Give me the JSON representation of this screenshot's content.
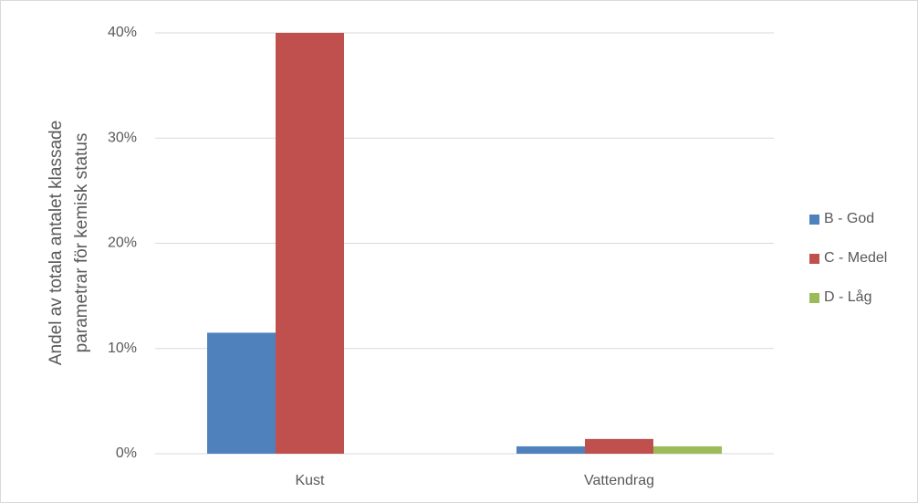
{
  "chart_data": {
    "type": "bar",
    "ylabel": [
      "Andel av totala antalet klassade",
      "parametrar för kemisk status"
    ],
    "categories": [
      "Kust",
      "Vattendrag"
    ],
    "series": [
      {
        "name": "B - God",
        "color": "#4f81bd",
        "values": [
          11.5,
          0.7
        ]
      },
      {
        "name": "C - Medel",
        "color": "#c0504d",
        "values": [
          40,
          1.4
        ]
      },
      {
        "name": "D - Låg",
        "color": "#9bbb59",
        "values": [
          0,
          0.7
        ]
      }
    ],
    "ylim": [
      0,
      40
    ],
    "yticks": [
      {
        "value": 0,
        "label": "0%"
      },
      {
        "value": 10,
        "label": "10%"
      },
      {
        "value": 20,
        "label": "20%"
      },
      {
        "value": 30,
        "label": "30%"
      },
      {
        "value": 40,
        "label": "40%"
      }
    ],
    "grid": true,
    "legend": "right"
  }
}
